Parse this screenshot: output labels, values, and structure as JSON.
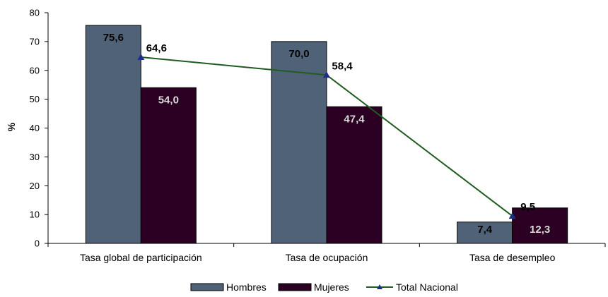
{
  "chart_data": {
    "type": "bar",
    "categories": [
      "Tasa global de participación",
      "Tasa de ocupación",
      "Tasa de desempleo"
    ],
    "series": [
      {
        "name": "Hombres",
        "type": "bar",
        "color": "#4F6278",
        "values": [
          75.6,
          70.0,
          7.4
        ],
        "labels": [
          "75,6",
          "70,0",
          "7,4"
        ]
      },
      {
        "name": "Mujeres",
        "type": "bar",
        "color": "#2B0022",
        "values": [
          54.0,
          47.4,
          12.3
        ],
        "labels": [
          "54,0",
          "47,4",
          "12,3"
        ]
      },
      {
        "name": "Total Nacional",
        "type": "line",
        "color": "#1F5C1F",
        "marker_color": "#1C2D8C",
        "values": [
          64.6,
          58.4,
          9.5
        ],
        "labels": [
          "64,6",
          "58,4",
          "9,5"
        ]
      }
    ],
    "ylabel": "%",
    "ylim": [
      0,
      80
    ],
    "yticks": [
      "0",
      "10",
      "20",
      "30",
      "40",
      "50",
      "60",
      "70",
      "80"
    ],
    "grid": false,
    "legend_position": "bottom"
  }
}
